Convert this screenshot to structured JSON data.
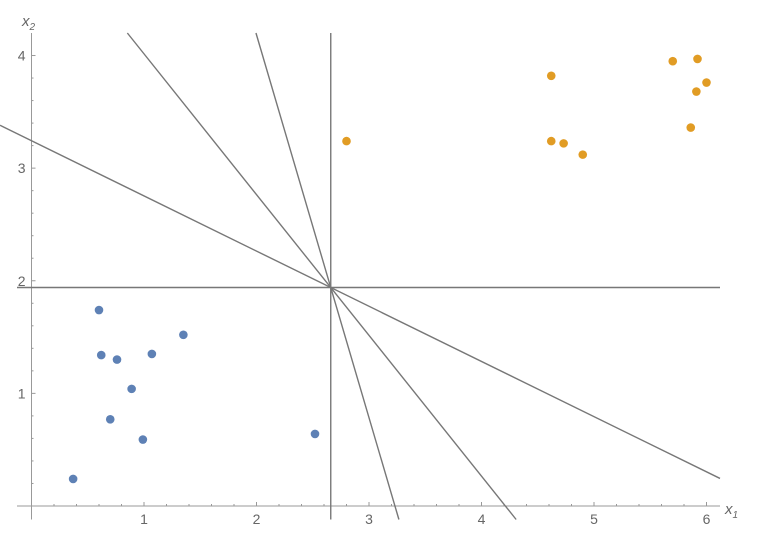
{
  "chart_data": {
    "type": "scatter",
    "xlabel": "x",
    "xlabel_sub": "1",
    "ylabel": "x",
    "ylabel_sub": "2",
    "xlim": [
      -0.28,
      6.12
    ],
    "ylim": [
      -0.12,
      4.2
    ],
    "xticks": [
      "1",
      "2",
      "3",
      "4",
      "5",
      "6"
    ],
    "yticks": [
      "1",
      "2",
      "3",
      "4"
    ],
    "grid": false,
    "series": [
      {
        "color": "#5E81B5",
        "points": [
          [
            0.37,
            0.24
          ],
          [
            0.6,
            1.74
          ],
          [
            0.62,
            1.34
          ],
          [
            0.76,
            1.3
          ],
          [
            1.07,
            1.35
          ],
          [
            1.35,
            1.52
          ],
          [
            0.89,
            1.04
          ],
          [
            0.7,
            0.77
          ],
          [
            0.99,
            0.59
          ],
          [
            2.52,
            0.64
          ]
        ]
      },
      {
        "color": "#E19C24",
        "points": [
          [
            2.8,
            3.24
          ],
          [
            4.62,
            3.82
          ],
          [
            4.62,
            3.24
          ],
          [
            4.73,
            3.22
          ],
          [
            4.9,
            3.12
          ],
          [
            5.7,
            3.95
          ],
          [
            5.92,
            3.97
          ],
          [
            6.0,
            3.76
          ],
          [
            5.91,
            3.68
          ],
          [
            5.86,
            3.36
          ]
        ]
      }
    ],
    "lines": {
      "color": "#777777",
      "through": [
        2.66,
        1.94
      ],
      "slopes": [
        "vertical",
        0,
        -0.49,
        -1.25,
        -3.4
      ]
    }
  }
}
